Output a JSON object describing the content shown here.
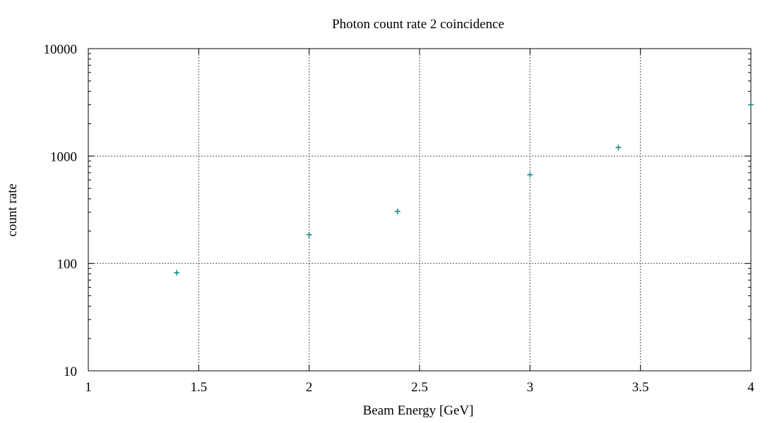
{
  "colors": {
    "point": "#1f8a8a",
    "grid": "#555555",
    "axis": "#000000"
  },
  "chart_data": {
    "type": "scatter",
    "title": "Photon count rate 2 coincidence",
    "xlabel": "Beam Energy [GeV]",
    "ylabel": "count rate",
    "xlim": [
      1,
      4
    ],
    "ylim": [
      10,
      10000
    ],
    "yscale": "log",
    "grid": true,
    "marker": "plus",
    "xticks": [
      1,
      1.5,
      2,
      2.5,
      3,
      3.5,
      4
    ],
    "xtick_labels": [
      "1",
      "1.5",
      "2",
      "2.5",
      "3",
      "3.5",
      "4"
    ],
    "yticks": [
      10,
      100,
      1000,
      10000
    ],
    "ytick_labels": [
      "10",
      "100",
      "1000",
      "10000"
    ],
    "points": [
      {
        "x": 1.4,
        "y": 82
      },
      {
        "x": 2.0,
        "y": 185
      },
      {
        "x": 2.4,
        "y": 305
      },
      {
        "x": 3.0,
        "y": 670
      },
      {
        "x": 3.4,
        "y": 1200
      },
      {
        "x": 4.0,
        "y": 3000
      }
    ]
  }
}
